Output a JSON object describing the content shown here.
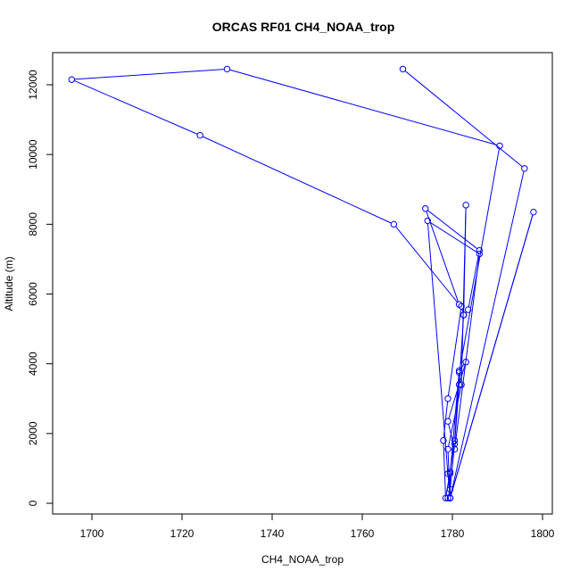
{
  "chart_data": {
    "type": "line",
    "title": "ORCAS RF01 CH4_NOAA_trop",
    "xlabel": "CH4_NOAA_trop",
    "ylabel": "Altitude (m)",
    "xlim": [
      1690,
      1800
    ],
    "ylim": [
      0,
      12500
    ],
    "x_ticks": [
      "1700",
      "1720",
      "1740",
      "1760",
      "1780",
      "1800"
    ],
    "y_ticks": [
      "0",
      "2000",
      "4000",
      "6000",
      "8000",
      "10000",
      "12000"
    ],
    "grid": false,
    "legend": "none",
    "series": [
      {
        "color": "#0000ff",
        "marker": "open-circle",
        "points": [
          [
            1779.0,
            150
          ],
          [
            1779.5,
            400
          ],
          [
            1780.5,
            1700
          ],
          [
            1781.5,
            3400
          ],
          [
            1782.5,
            5400
          ],
          [
            1783.5,
            5550
          ],
          [
            1786.0,
            7250
          ],
          [
            1774.0,
            8450
          ],
          [
            1781.5,
            5700
          ],
          [
            1767.0,
            8000
          ],
          [
            1724.0,
            10550
          ],
          [
            1695.5,
            12150
          ],
          [
            1730.0,
            12450
          ],
          [
            1790.5,
            10250
          ],
          [
            1781.5,
            3750
          ],
          [
            1780.5,
            1800
          ],
          [
            1779.5,
            900
          ],
          [
            1778.5,
            150
          ],
          [
            1778.0,
            1800
          ],
          [
            1779.0,
            3000
          ],
          [
            1782.0,
            5650
          ],
          [
            1782.5,
            5400
          ],
          [
            1783.0,
            8550
          ],
          [
            1782.0,
            3400
          ],
          [
            1779.0,
            1550
          ],
          [
            1779.5,
            150
          ],
          [
            1798.0,
            8350
          ],
          [
            1779.5,
            150
          ],
          [
            1779.5,
            850
          ],
          [
            1781.5,
            3800
          ],
          [
            1783.0,
            4050
          ],
          [
            1779.0,
            2350
          ],
          [
            1780.5,
            1550
          ],
          [
            1786.0,
            7150
          ],
          [
            1774.5,
            8100
          ],
          [
            1779.0,
            850
          ],
          [
            1779.5,
            150
          ],
          [
            1796.0,
            9600
          ],
          [
            1769.0,
            12450
          ]
        ]
      }
    ]
  }
}
